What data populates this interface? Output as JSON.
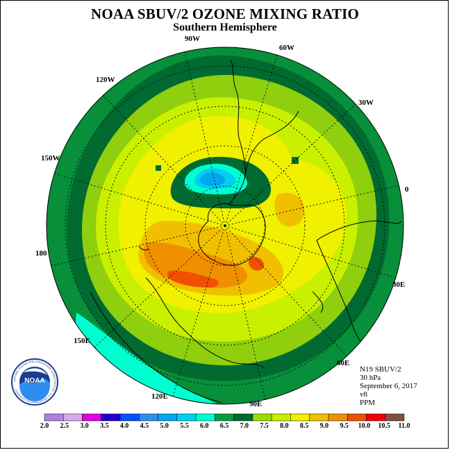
{
  "title": "NOAA SBUV/2 OZONE MIXING RATIO",
  "subtitle": "Southern Hemisphere",
  "lon_labels": [
    "90W",
    "60W",
    "30W",
    "0",
    "30E",
    "60E",
    "90E",
    "120E",
    "150E",
    "180",
    "150W",
    "120W"
  ],
  "info": {
    "satellite": "N19 SBUV/2",
    "level": "30 hPa",
    "date": "September 6, 2017",
    "version": "v8",
    "units": "PPM"
  },
  "logo": {
    "text": "NOAA",
    "ring_text": "NATIONAL OCEANIC AND ATMOSPHERIC ADMINISTRATION · U.S. DEPARTMENT OF COMMERCE"
  },
  "colorbar": {
    "labels": [
      "2.0",
      "2.5",
      "3.0",
      "3.5",
      "4.0",
      "4.5",
      "5.0",
      "5.5",
      "6.0",
      "6.5",
      "7.0",
      "7.5",
      "8.0",
      "8.5",
      "9.0",
      "9.5",
      "10.0",
      "10.5",
      "11.0"
    ],
    "colors": [
      "#b07fe0",
      "#d9a9f0",
      "#e000e0",
      "#1f00d0",
      "#0050ff",
      "#2e8ef0",
      "#00a8f0",
      "#00d0f0",
      "#00ffd0",
      "#00a040",
      "#006a30",
      "#9adc00",
      "#c8f000",
      "#f0f000",
      "#f0c000",
      "#f09000",
      "#f05000",
      "#f00000",
      "#805040"
    ]
  },
  "map_colors": {
    "outer": "#078f3a",
    "dark": "#006a30",
    "ring75": "#8fcf0e",
    "ring8": "#c8f000",
    "ring85": "#f0f000",
    "ring9": "#f0c000",
    "ring95": "#f09000",
    "ring10": "#f05000",
    "low6": "#00ffd0",
    "low55": "#00d0f0",
    "low5": "#00a8f0"
  }
}
